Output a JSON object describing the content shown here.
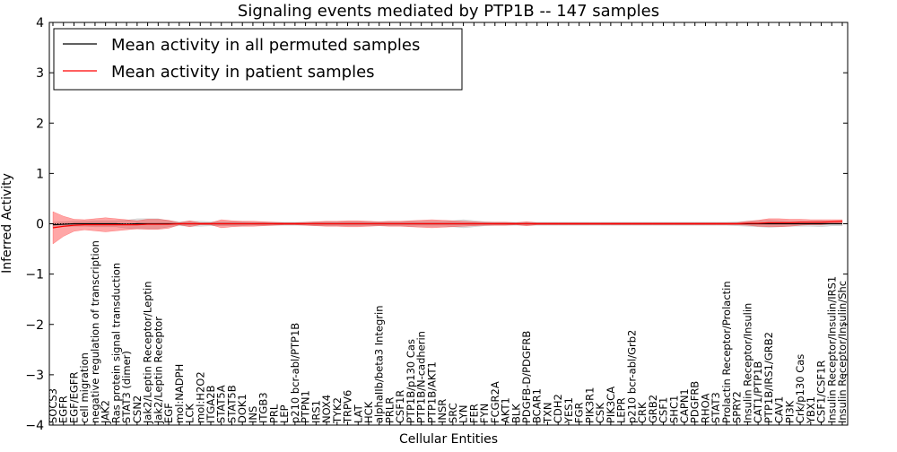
{
  "chart_data": {
    "type": "line",
    "title": "Signaling events mediated by PTP1B -- 147 samples",
    "xlabel": "Cellular Entities",
    "ylabel": "Inferred Activity",
    "ylim": [
      -4,
      4
    ],
    "yticks": [
      4,
      3,
      2,
      1,
      0,
      -1,
      -2,
      -3,
      -4
    ],
    "ytick_labels": [
      "4",
      "3",
      "2",
      "1",
      "0",
      "−1",
      "−2",
      "−3",
      "−4"
    ],
    "legend_position": "top-left",
    "categories": [
      "SOCS3",
      "EGFR",
      "EGF/EGFR",
      "cell migration",
      "negative regulation of transcription",
      "JAK2",
      "Ras protein signal transduction",
      "STAT3 (dimer)",
      "CSN2",
      "Jak2/Leptin Receptor/Leptin",
      "Jak2/Leptin Receptor",
      "EGF",
      "mol:NADPH",
      "LCK",
      "mol:H2O2",
      "ITGA2B",
      "STAT5A",
      "STAT5B",
      "DOK1",
      "INS",
      "ITGB3",
      "PRL",
      "LEP",
      "p210 bcr-abl/PTP1B",
      "PTPN1",
      "IRS1",
      "NOX4",
      "TYK2",
      "TRPV6",
      "LAT",
      "HCK",
      "alphaIIb/beta3 Integrin",
      "PRLR",
      "CSF1R",
      "PTP1B/p130 Cas",
      "PTP1B/N-cadherin",
      "PTP1B/AKT1",
      "INSR",
      "SRC",
      "LYN",
      "FER",
      "FYN",
      "FCGR2A",
      "AKT1",
      "BLK",
      "PDGFB-D/PDGFRB",
      "BCAR1",
      "TXN",
      "CDH2",
      "YES1",
      "FGR",
      "PIK3R1",
      "CSK",
      "PIK3CA",
      "LEPR",
      "p210 bcr-abl/Grb2",
      "CRK",
      "GRB2",
      "CSF1",
      "SHC1",
      "CAPN1",
      "PDGFRB",
      "RHOA",
      "STAT3",
      "Prolactin Receptor/Prolactin",
      "SPRY2",
      "Insulin Receptor/Insulin",
      "CAT1/PTP1B",
      "PTP1B/IRS1/GRB2",
      "CAV1",
      "PI3K",
      "Crk/p130 Cas",
      "YBX1",
      "CSF1/CSF1R",
      "Insulin Receptor/Insulin/IRS1",
      "Insulin Receptor/Insulin/Shc"
    ],
    "series": [
      {
        "name": "Mean activity in all permuted samples",
        "color": "#000000",
        "band_color": "#999999",
        "values": [
          -0.02,
          -0.01,
          0.0,
          0.0,
          0.0,
          0.0,
          0.0,
          -0.01,
          0.0,
          0.0,
          0.0,
          0.0,
          0.0,
          0.0,
          0.0,
          0.0,
          0.0,
          0.0,
          0.0,
          0.0,
          0.0,
          0.0,
          0.0,
          0.0,
          0.0,
          0.0,
          0.0,
          0.0,
          0.0,
          0.0,
          0.0,
          0.0,
          0.0,
          0.0,
          0.0,
          0.0,
          0.0,
          0.0,
          0.0,
          0.0,
          0.0,
          0.0,
          0.0,
          0.0,
          0.0,
          0.0,
          0.0,
          0.0,
          0.0,
          0.0,
          0.0,
          0.0,
          0.0,
          0.0,
          0.0,
          0.0,
          0.0,
          0.0,
          0.0,
          0.0,
          0.0,
          0.0,
          0.0,
          0.0,
          0.0,
          0.0,
          0.0,
          0.0,
          0.0,
          0.0,
          0.0,
          0.0,
          0.0,
          0.0,
          0.0,
          0.0
        ],
        "band_width": [
          0.05,
          0.05,
          0.05,
          0.05,
          0.06,
          0.06,
          0.06,
          0.08,
          0.1,
          0.1,
          0.1,
          0.06,
          0.04,
          0.05,
          0.05,
          0.04,
          0.04,
          0.04,
          0.04,
          0.03,
          0.03,
          0.03,
          0.03,
          0.03,
          0.03,
          0.04,
          0.04,
          0.04,
          0.04,
          0.04,
          0.04,
          0.04,
          0.04,
          0.04,
          0.05,
          0.05,
          0.05,
          0.05,
          0.06,
          0.08,
          0.06,
          0.04,
          0.03,
          0.03,
          0.03,
          0.03,
          0.03,
          0.03,
          0.03,
          0.03,
          0.03,
          0.03,
          0.03,
          0.03,
          0.03,
          0.03,
          0.03,
          0.03,
          0.03,
          0.03,
          0.03,
          0.03,
          0.03,
          0.03,
          0.03,
          0.04,
          0.05,
          0.06,
          0.07,
          0.06,
          0.05,
          0.05,
          0.05,
          0.06,
          0.04,
          0.04
        ]
      },
      {
        "name": "Mean activity in patient samples",
        "color": "#ff0000",
        "band_color": "#ff0000",
        "values": [
          -0.08,
          -0.05,
          -0.03,
          -0.02,
          -0.02,
          -0.02,
          -0.02,
          -0.02,
          -0.02,
          -0.01,
          -0.01,
          -0.01,
          0.0,
          0.0,
          0.0,
          0.0,
          0.0,
          0.0,
          0.0,
          0.0,
          0.0,
          0.0,
          0.0,
          0.0,
          0.0,
          0.0,
          0.0,
          0.0,
          0.0,
          0.0,
          0.0,
          0.0,
          0.0,
          0.0,
          0.0,
          0.0,
          0.0,
          0.0,
          0.0,
          0.0,
          0.0,
          0.0,
          0.0,
          0.0,
          0.0,
          0.0,
          0.0,
          0.0,
          0.0,
          0.0,
          0.0,
          0.0,
          0.0,
          0.0,
          0.0,
          0.0,
          0.0,
          0.0,
          0.0,
          0.0,
          0.0,
          0.0,
          0.0,
          0.0,
          0.0,
          0.0,
          0.01,
          0.01,
          0.02,
          0.02,
          0.02,
          0.03,
          0.03,
          0.03,
          0.04,
          0.05
        ],
        "band_width": [
          0.32,
          0.2,
          0.12,
          0.1,
          0.12,
          0.14,
          0.12,
          0.1,
          0.08,
          0.1,
          0.1,
          0.08,
          0.02,
          0.06,
          0.02,
          0.02,
          0.08,
          0.06,
          0.05,
          0.05,
          0.04,
          0.03,
          0.02,
          0.02,
          0.03,
          0.04,
          0.05,
          0.05,
          0.06,
          0.06,
          0.05,
          0.04,
          0.05,
          0.05,
          0.06,
          0.07,
          0.08,
          0.07,
          0.06,
          0.05,
          0.04,
          0.03,
          0.03,
          0.03,
          0.02,
          0.04,
          0.02,
          0.02,
          0.02,
          0.02,
          0.02,
          0.02,
          0.02,
          0.02,
          0.02,
          0.02,
          0.02,
          0.02,
          0.02,
          0.02,
          0.02,
          0.02,
          0.02,
          0.02,
          0.02,
          0.02,
          0.04,
          0.06,
          0.08,
          0.08,
          0.07,
          0.06,
          0.05,
          0.05,
          0.04,
          0.03
        ]
      }
    ]
  }
}
